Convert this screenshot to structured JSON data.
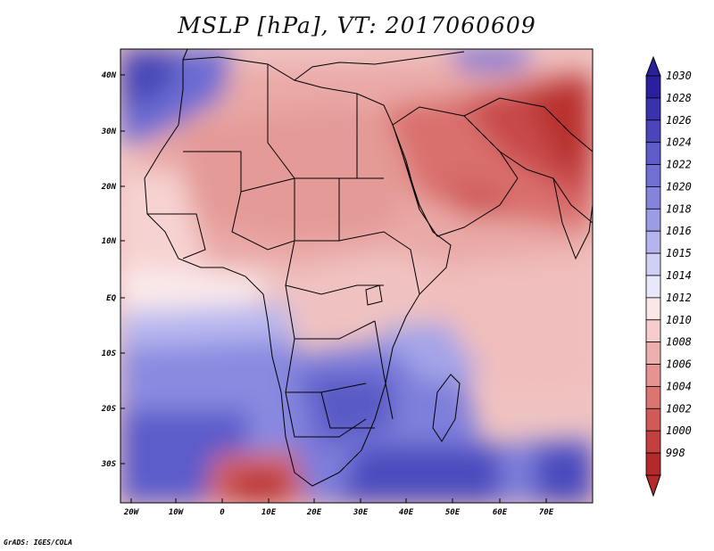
{
  "title": "MSLP [hPa], VT: 2017060609",
  "credit": "GrADS: IGES/COLA",
  "lat_labels": [
    "40N",
    "30N",
    "20N",
    "10N",
    "EQ",
    "10S",
    "20S",
    "30S"
  ],
  "lon_labels": [
    "20W",
    "10W",
    "0",
    "10E",
    "20E",
    "30E",
    "40E",
    "50E",
    "60E",
    "70E"
  ],
  "colorbar": {
    "levels": [
      "1030",
      "1028",
      "1026",
      "1024",
      "1022",
      "1020",
      "1018",
      "1016",
      "1015",
      "1014",
      "1012",
      "1010",
      "1008",
      "1006",
      "1004",
      "1002",
      "1000",
      "998"
    ],
    "colors": [
      "#2a1f9c",
      "#3a31ad",
      "#4b45bc",
      "#5d5cc9",
      "#7070d4",
      "#8484dd",
      "#9b9be6",
      "#b4b4ee",
      "#d0d0f5",
      "#e8e8fa",
      "#fbe7e7",
      "#f6cccc",
      "#eeb0ae",
      "#e59491",
      "#db7572",
      "#d15a58",
      "#c43f3f",
      "#b42a2a"
    ]
  }
}
